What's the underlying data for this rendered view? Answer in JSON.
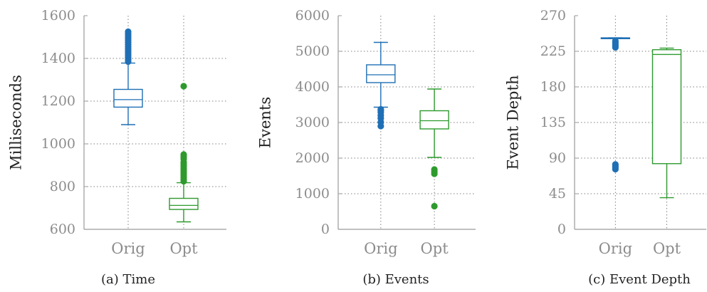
{
  "colors": {
    "orig": "#1f6fb5",
    "opt": "#2e9a2e",
    "axis": "#9a9a9a",
    "grid": "#808080"
  },
  "chart_data": [
    {
      "type": "box",
      "caption": "(a) Time",
      "ylabel": "Milliseconds",
      "ylim": [
        600,
        1600
      ],
      "yticks": [
        600,
        800,
        1000,
        1200,
        1400,
        1600
      ],
      "categories": [
        "Orig",
        "Opt"
      ],
      "boxes": [
        {
          "name": "Orig",
          "whisker_low": 1090,
          "q1": 1172,
          "median": 1207,
          "q3": 1255,
          "whisker_high": 1378,
          "outliers": [
            1385,
            1395,
            1405,
            1415,
            1425,
            1435,
            1445,
            1455,
            1465,
            1475,
            1485,
            1495,
            1505,
            1515,
            1525
          ]
        },
        {
          "name": "Opt",
          "whisker_low": 635,
          "q1": 693,
          "median": 712,
          "q3": 745,
          "whisker_high": 818,
          "outliers": [
            825,
            835,
            845,
            855,
            865,
            875,
            885,
            895,
            905,
            915,
            930,
            940,
            950,
            1270
          ]
        }
      ],
      "grid": true
    },
    {
      "type": "box",
      "caption": "(b) Events",
      "ylabel": "Events",
      "ylim": [
        0,
        6000
      ],
      "yticks": [
        0,
        1000,
        2000,
        3000,
        4000,
        5000,
        6000
      ],
      "categories": [
        "Orig",
        "Opt"
      ],
      "boxes": [
        {
          "name": "Orig",
          "whisker_low": 3430,
          "q1": 4120,
          "median": 4340,
          "q3": 4620,
          "whisker_high": 5250,
          "outliers": [
            2900,
            3010,
            3120,
            3200,
            3290,
            3340,
            3370
          ]
        },
        {
          "name": "Opt",
          "whisker_low": 2020,
          "q1": 2820,
          "median": 3050,
          "q3": 3330,
          "whisker_high": 3940,
          "outliers": [
            650,
            1560,
            1620,
            1680
          ]
        }
      ],
      "grid": true
    },
    {
      "type": "box",
      "caption": "(c) Event Depth",
      "ylabel": "Event Depth",
      "ylim": [
        0,
        270
      ],
      "yticks": [
        0,
        45,
        90,
        135,
        180,
        225,
        270
      ],
      "categories": [
        "Orig",
        "Opt"
      ],
      "boxes": [
        {
          "name": "Orig",
          "whisker_low": 241,
          "q1": 241,
          "median": 241,
          "q3": 242,
          "whisker_high": 242,
          "outliers": [
            76,
            78,
            80,
            82,
            230,
            232,
            234,
            236,
            238
          ]
        },
        {
          "name": "Opt",
          "whisker_low": 40,
          "q1": 83,
          "median": 221,
          "q3": 227,
          "whisker_high": 229,
          "outliers": []
        }
      ],
      "grid": true
    }
  ]
}
